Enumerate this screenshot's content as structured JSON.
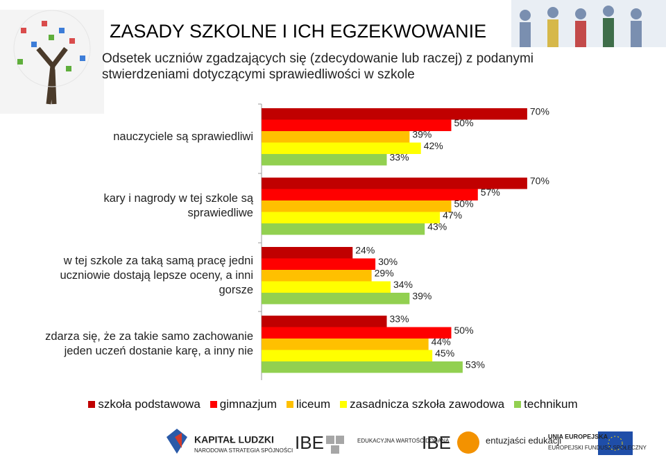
{
  "chart_data": {
    "type": "bar",
    "orientation": "horizontal",
    "title": "ZASADY SZKOLNE I ICH EGZEKWOWANIE",
    "subtitle": "Odsetek uczniów zgadzających się (zdecydowanie lub raczej) z podanymi stwierdzeniami dotyczącymi sprawiedliwości w szkole",
    "categories": [
      "nauczyciele są sprawiedliwi",
      "kary i nagrody w tej szkole są sprawiedliwe",
      "w tej szkole za taką samą pracę jedni uczniowie dostają lepsze oceny, a inni gorsze",
      "zdarza się, że za takie samo zachowanie jeden uczeń dostanie karę, a inny nie"
    ],
    "series": [
      {
        "name": "szkoła podstawowa",
        "color": "#c00000",
        "values": [
          70,
          70,
          24,
          33
        ],
        "value_labels": [
          "70%",
          "70%",
          "24%",
          "33%"
        ]
      },
      {
        "name": "gimnazjum",
        "color": "#ff0000",
        "values": [
          50,
          57,
          30,
          50
        ],
        "value_labels": [
          "50%",
          "57%",
          "30%",
          "50%"
        ]
      },
      {
        "name": "liceum",
        "color": "#ffc000",
        "values": [
          39,
          50,
          29,
          44
        ],
        "value_labels": [
          "39%",
          "50%",
          "29%",
          "44%"
        ]
      },
      {
        "name": "zasadnicza szkoła zawodowa",
        "color": "#ffff00",
        "values": [
          42,
          47,
          34,
          45
        ],
        "value_labels": [
          "42%",
          "47%",
          "34%",
          "45%"
        ]
      },
      {
        "name": "technikum",
        "color": "#92d050",
        "values": [
          33,
          43,
          39,
          53
        ],
        "value_labels": [
          "33%",
          "43%",
          "39%",
          "53%"
        ]
      }
    ],
    "xlim": [
      0,
      100
    ],
    "legend": "bottom"
  },
  "footer": {
    "logos": [
      "KAPITAŁ LUDZKI",
      "NARODOWA STRATEGIA SPÓJNOŚCI",
      "IBE",
      "EDUKACYJNA WARTOŚĆ DODANA",
      "IBE",
      "entuzjaści edukacji",
      "UNIA EUROPEJSKA",
      "EUROPEJSKI FUNDUSZ SPOŁECZNY"
    ]
  }
}
